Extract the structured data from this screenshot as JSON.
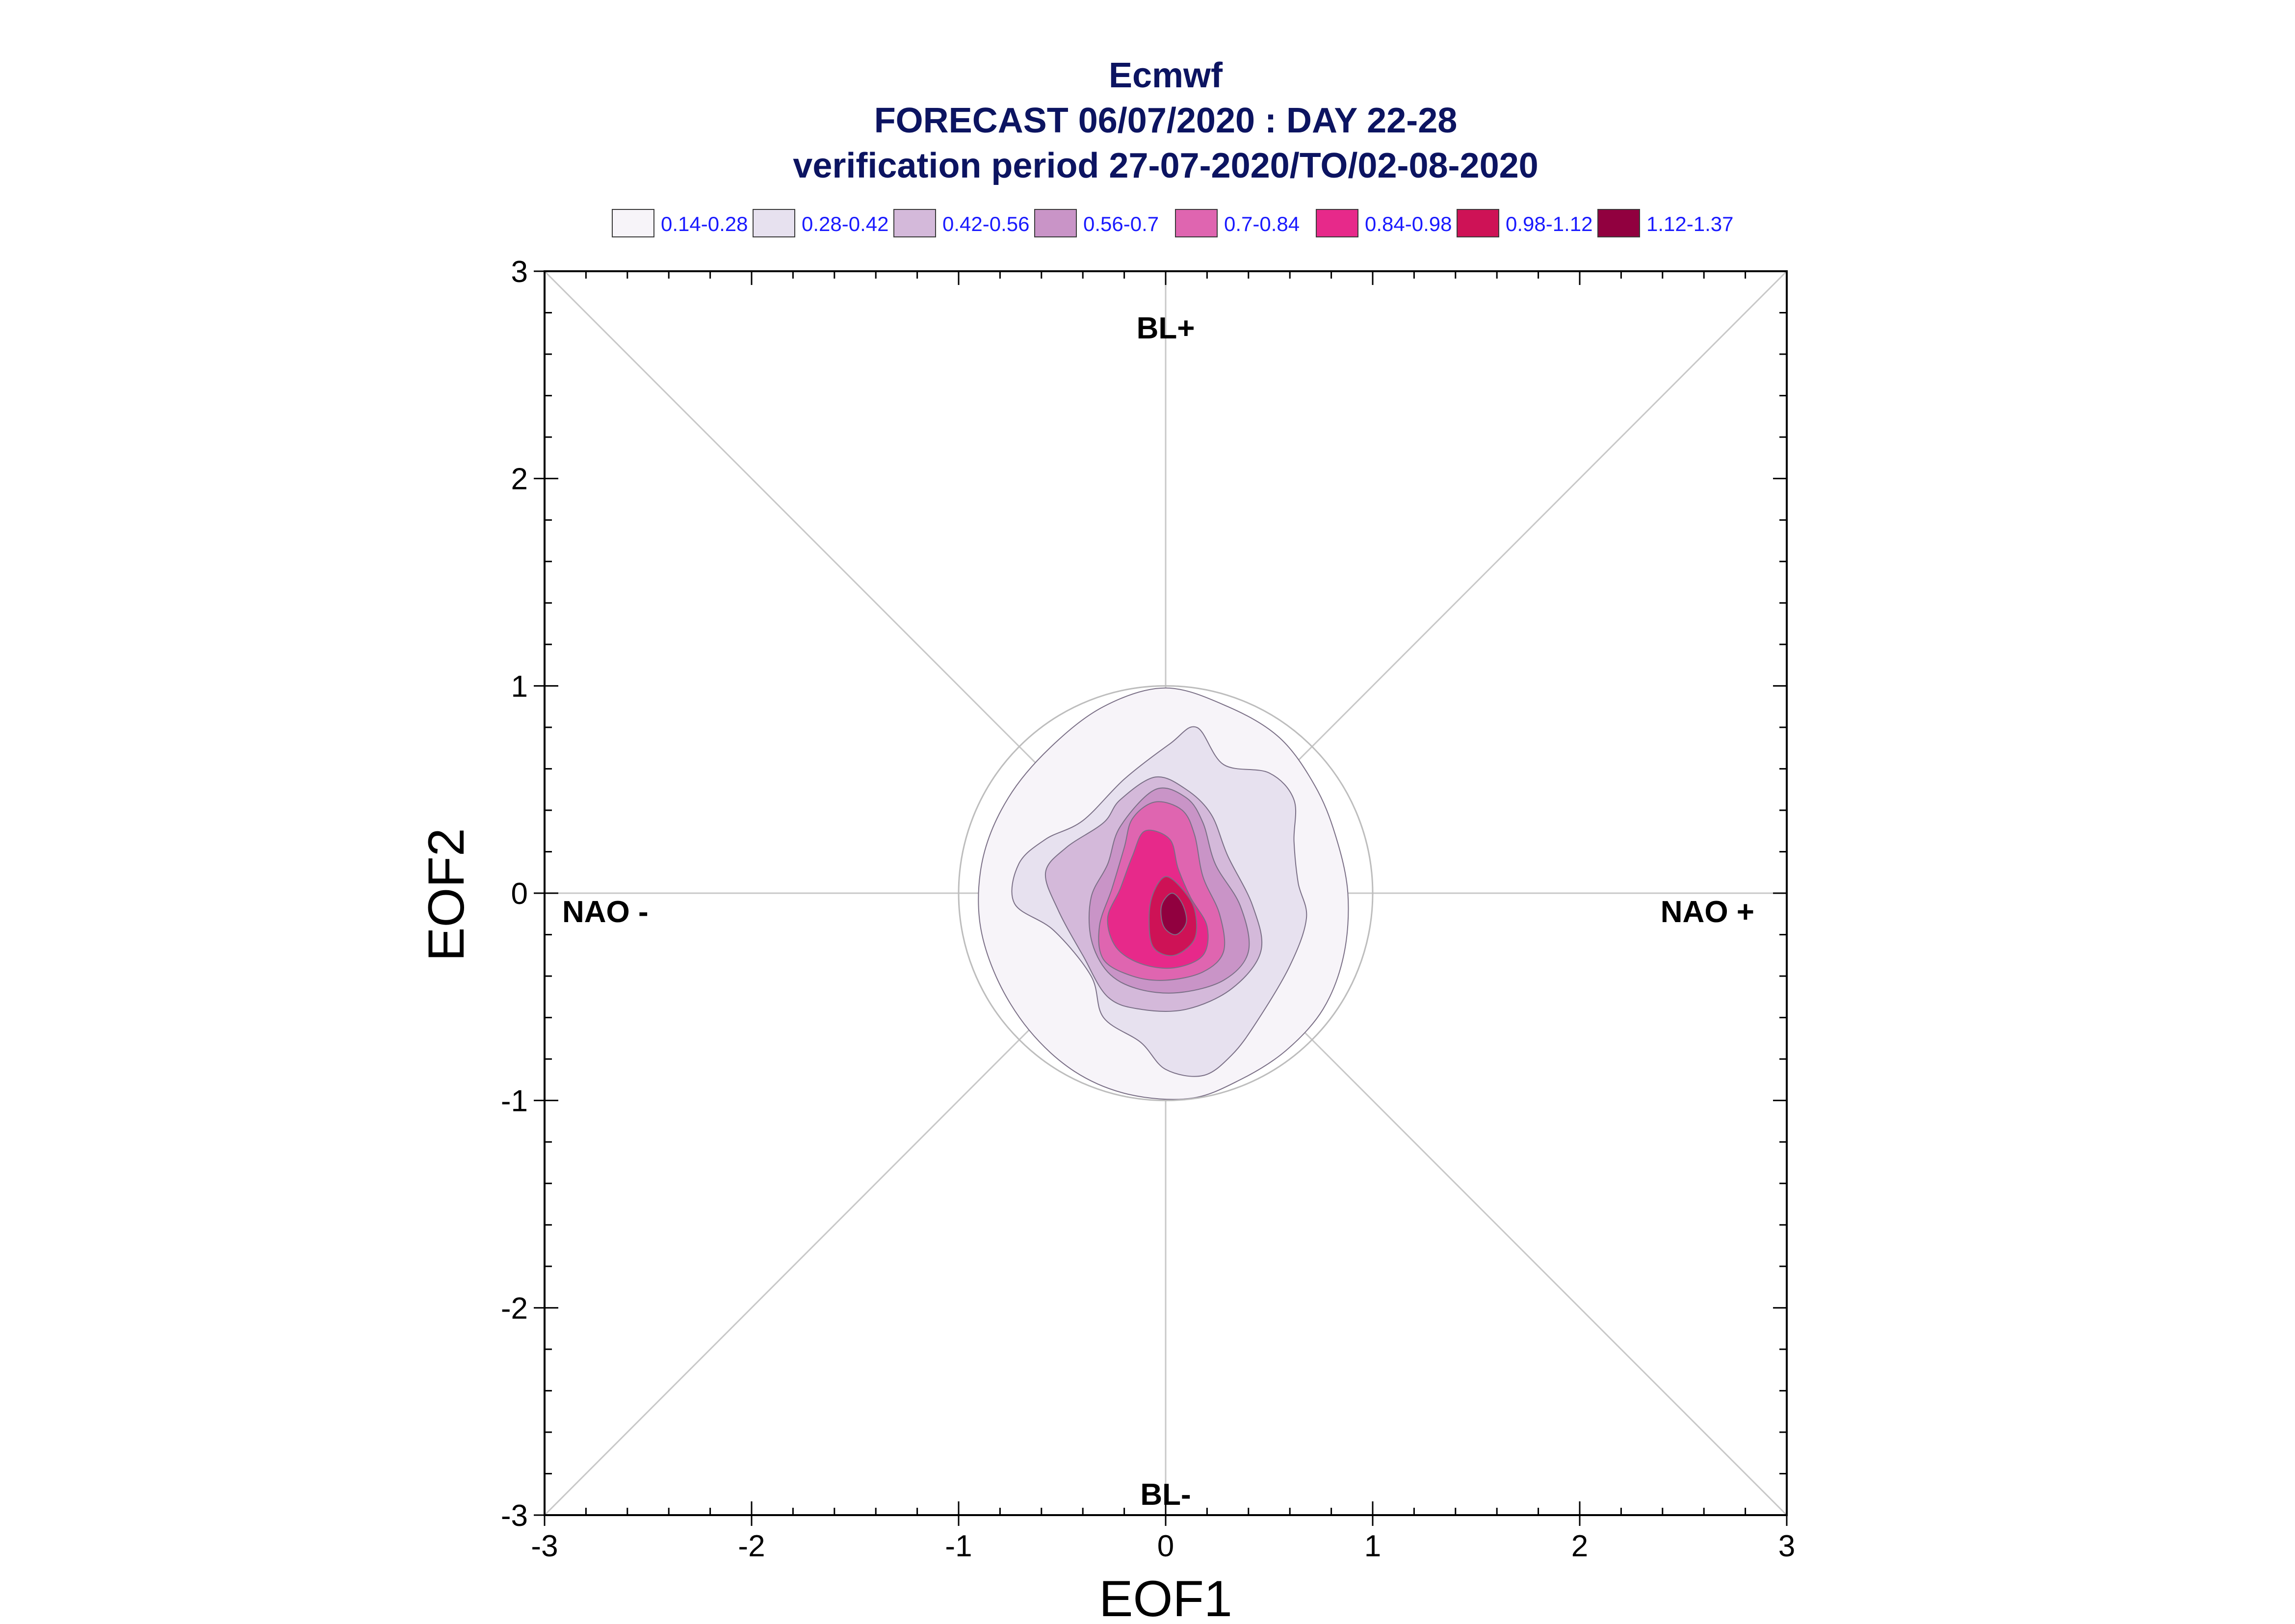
{
  "chart_data": {
    "type": "contour",
    "title": "Ecmwf",
    "subtitle1": "FORECAST 06/07/2020 : DAY 22-28",
    "subtitle2": "verification period 27-07-2020/TO/02-08-2020",
    "xlabel": "EOF1",
    "ylabel": "EOF2",
    "xlim": [
      -3,
      3
    ],
    "ylim": [
      -3,
      3
    ],
    "xticks": [
      "-3",
      "-2",
      "-1",
      "0",
      "1",
      "2",
      "3"
    ],
    "yticks": [
      "-3",
      "-2",
      "-1",
      "0",
      "1",
      "2",
      "3"
    ],
    "regions": {
      "top": "BL+",
      "bottom": "BL-",
      "left": "NAO -",
      "right": "NAO +"
    },
    "reference_circle_radius": 1,
    "legend": [
      {
        "label": "0.14-0.28",
        "color": "#f7f4f9"
      },
      {
        "label": "0.28-0.42",
        "color": "#e7e1ef"
      },
      {
        "label": "0.42-0.56",
        "color": "#d4b9da"
      },
      {
        "label": "0.56-0.7",
        "color": "#c994c7"
      },
      {
        "label": "0.7-0.84",
        "color": "#df65b0"
      },
      {
        "label": "0.84-0.98",
        "color": "#e7298a"
      },
      {
        "label": "0.98-1.12",
        "color": "#ce1256"
      },
      {
        "label": "1.12-1.37",
        "color": "#91003f"
      }
    ],
    "contours": [
      {
        "level": "0.14-0.28",
        "points": [
          [
            0.0,
            0.99
          ],
          [
            0.3,
            0.9
          ],
          [
            0.55,
            0.75
          ],
          [
            0.72,
            0.52
          ],
          [
            0.82,
            0.28
          ],
          [
            0.88,
            0.0
          ],
          [
            0.86,
            -0.3
          ],
          [
            0.76,
            -0.56
          ],
          [
            0.58,
            -0.76
          ],
          [
            0.36,
            -0.9
          ],
          [
            0.12,
            -0.99
          ],
          [
            -0.18,
            -0.97
          ],
          [
            -0.44,
            -0.86
          ],
          [
            -0.66,
            -0.66
          ],
          [
            -0.82,
            -0.4
          ],
          [
            -0.9,
            -0.12
          ],
          [
            -0.88,
            0.18
          ],
          [
            -0.76,
            0.46
          ],
          [
            -0.56,
            0.7
          ],
          [
            -0.3,
            0.9
          ]
        ]
      },
      {
        "level": "0.28-0.42",
        "points": [
          [
            0.15,
            0.8
          ],
          [
            0.28,
            0.62
          ],
          [
            0.5,
            0.58
          ],
          [
            0.62,
            0.45
          ],
          [
            0.62,
            0.25
          ],
          [
            0.64,
            0.05
          ],
          [
            0.68,
            -0.12
          ],
          [
            0.6,
            -0.35
          ],
          [
            0.44,
            -0.62
          ],
          [
            0.32,
            -0.78
          ],
          [
            0.18,
            -0.88
          ],
          [
            0.0,
            -0.85
          ],
          [
            -0.12,
            -0.72
          ],
          [
            -0.3,
            -0.6
          ],
          [
            -0.36,
            -0.4
          ],
          [
            -0.54,
            -0.18
          ],
          [
            -0.73,
            -0.05
          ],
          [
            -0.71,
            0.14
          ],
          [
            -0.58,
            0.26
          ],
          [
            -0.4,
            0.35
          ],
          [
            -0.2,
            0.55
          ],
          [
            0.02,
            0.72
          ]
        ]
      },
      {
        "level": "0.42-0.56",
        "points": [
          [
            -0.05,
            0.56
          ],
          [
            0.1,
            0.5
          ],
          [
            0.22,
            0.38
          ],
          [
            0.3,
            0.18
          ],
          [
            0.42,
            -0.06
          ],
          [
            0.46,
            -0.28
          ],
          [
            0.32,
            -0.46
          ],
          [
            0.1,
            -0.56
          ],
          [
            -0.12,
            -0.56
          ],
          [
            -0.28,
            -0.5
          ],
          [
            -0.4,
            -0.3
          ],
          [
            -0.52,
            -0.08
          ],
          [
            -0.58,
            0.1
          ],
          [
            -0.48,
            0.22
          ],
          [
            -0.3,
            0.34
          ],
          [
            -0.22,
            0.45
          ]
        ]
      },
      {
        "level": "0.56-0.7",
        "points": [
          [
            -0.05,
            0.5
          ],
          [
            0.1,
            0.46
          ],
          [
            0.18,
            0.34
          ],
          [
            0.24,
            0.14
          ],
          [
            0.36,
            -0.06
          ],
          [
            0.4,
            -0.28
          ],
          [
            0.28,
            -0.42
          ],
          [
            0.06,
            -0.48
          ],
          [
            -0.14,
            -0.46
          ],
          [
            -0.28,
            -0.38
          ],
          [
            -0.36,
            -0.22
          ],
          [
            -0.36,
            -0.02
          ],
          [
            -0.28,
            0.14
          ],
          [
            -0.22,
            0.32
          ]
        ]
      },
      {
        "level": "0.7-0.84",
        "points": [
          [
            -0.05,
            0.44
          ],
          [
            0.08,
            0.4
          ],
          [
            0.14,
            0.28
          ],
          [
            0.18,
            0.08
          ],
          [
            0.26,
            -0.1
          ],
          [
            0.28,
            -0.28
          ],
          [
            0.18,
            -0.38
          ],
          [
            0.0,
            -0.42
          ],
          [
            -0.16,
            -0.4
          ],
          [
            -0.3,
            -0.32
          ],
          [
            -0.32,
            -0.16
          ],
          [
            -0.26,
            0.02
          ],
          [
            -0.2,
            0.22
          ],
          [
            -0.16,
            0.36
          ]
        ]
      },
      {
        "level": "0.84-0.98",
        "points": [
          [
            -0.1,
            0.3
          ],
          [
            0.02,
            0.26
          ],
          [
            0.06,
            0.12
          ],
          [
            0.12,
            -0.02
          ],
          [
            0.2,
            -0.16
          ],
          [
            0.18,
            -0.3
          ],
          [
            0.04,
            -0.36
          ],
          [
            -0.12,
            -0.34
          ],
          [
            -0.24,
            -0.26
          ],
          [
            -0.28,
            -0.12
          ],
          [
            -0.22,
            0.02
          ],
          [
            -0.16,
            0.18
          ]
        ]
      },
      {
        "level": "0.98-1.12",
        "points": [
          [
            0.0,
            0.08
          ],
          [
            0.08,
            0.02
          ],
          [
            0.14,
            -0.08
          ],
          [
            0.14,
            -0.22
          ],
          [
            0.04,
            -0.3
          ],
          [
            -0.06,
            -0.26
          ],
          [
            -0.08,
            -0.12
          ],
          [
            -0.06,
            0.0
          ]
        ]
      },
      {
        "level": "1.12-1.37",
        "points": [
          [
            0.03,
            0.0
          ],
          [
            0.08,
            -0.05
          ],
          [
            0.1,
            -0.14
          ],
          [
            0.05,
            -0.2
          ],
          [
            -0.01,
            -0.16
          ],
          [
            -0.02,
            -0.06
          ]
        ]
      }
    ]
  }
}
